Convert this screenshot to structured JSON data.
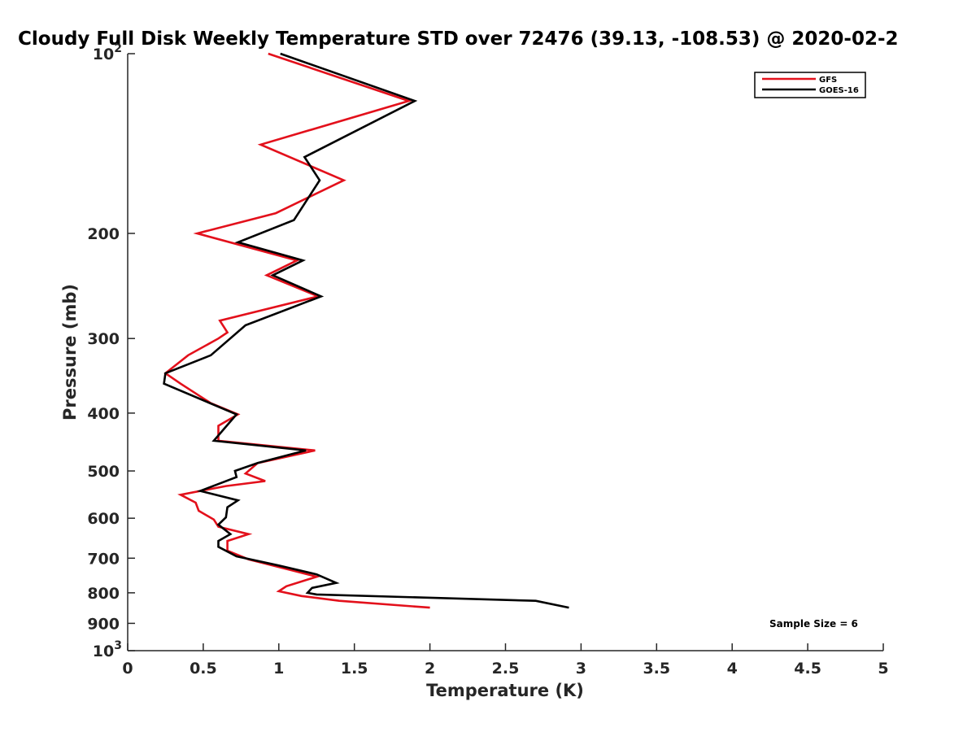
{
  "chart_data": {
    "type": "line",
    "title": "Cloudy Full Disk Weekly Temperature STD over 72476 (39.13, -108.53) @ 2020-02-2",
    "xlabel": "Temperature (K)",
    "ylabel": "Pressure (mb)",
    "xlim": [
      0,
      5
    ],
    "ylim": [
      100,
      1000
    ],
    "y_scale": "log",
    "y_reversed": true,
    "grid": false,
    "legend_position": "top-right",
    "x_ticks": [
      "0",
      "0.5",
      "1",
      "1.5",
      "2",
      "2.5",
      "3",
      "3.5",
      "4",
      "4.5",
      "5"
    ],
    "y_ticks": [
      {
        "value": 100,
        "label": "10",
        "sup": "2"
      },
      {
        "value": 200,
        "label": "200",
        "sup": ""
      },
      {
        "value": 300,
        "label": "300",
        "sup": ""
      },
      {
        "value": 400,
        "label": "400",
        "sup": ""
      },
      {
        "value": 500,
        "label": "500",
        "sup": ""
      },
      {
        "value": 600,
        "label": "600",
        "sup": ""
      },
      {
        "value": 700,
        "label": "700",
        "sup": ""
      },
      {
        "value": 800,
        "label": "800",
        "sup": ""
      },
      {
        "value": 900,
        "label": "900",
        "sup": ""
      },
      {
        "value": 1000,
        "label": "10",
        "sup": "3"
      }
    ],
    "annotation": "Sample Size = 6",
    "series": [
      {
        "name": "GFS",
        "color": "#e3101b",
        "points": [
          [
            0.93,
            100
          ],
          [
            1.86,
            120
          ],
          [
            0.88,
            142
          ],
          [
            1.43,
            163
          ],
          [
            0.98,
            185
          ],
          [
            0.46,
            200
          ],
          [
            1.12,
            222
          ],
          [
            0.92,
            235
          ],
          [
            1.26,
            255
          ],
          [
            0.61,
            280
          ],
          [
            0.66,
            293
          ],
          [
            0.6,
            300
          ],
          [
            0.4,
            320
          ],
          [
            0.25,
            343
          ],
          [
            0.35,
            357
          ],
          [
            0.55,
            385
          ],
          [
            0.73,
            402
          ],
          [
            0.6,
            420
          ],
          [
            0.6,
            445
          ],
          [
            1.24,
            462
          ],
          [
            0.86,
            485
          ],
          [
            0.78,
            505
          ],
          [
            0.91,
            520
          ],
          [
            0.65,
            530
          ],
          [
            0.35,
            548
          ],
          [
            0.45,
            565
          ],
          [
            0.47,
            583
          ],
          [
            0.57,
            603
          ],
          [
            0.6,
            620
          ],
          [
            0.8,
            638
          ],
          [
            0.66,
            655
          ],
          [
            0.66,
            680
          ],
          [
            0.8,
            703
          ],
          [
            1.1,
            735
          ],
          [
            1.25,
            752
          ],
          [
            1.05,
            780
          ],
          [
            1.0,
            795
          ],
          [
            1.15,
            810
          ],
          [
            1.4,
            825
          ],
          [
            2.0,
            847
          ]
        ]
      },
      {
        "name": "GOES-16",
        "color": "#000000",
        "points": [
          [
            1.01,
            100
          ],
          [
            1.9,
            120
          ],
          [
            1.17,
            149
          ],
          [
            1.27,
            163
          ],
          [
            1.1,
            190
          ],
          [
            0.73,
            207
          ],
          [
            1.16,
            222
          ],
          [
            0.96,
            235
          ],
          [
            1.28,
            255
          ],
          [
            0.78,
            285
          ],
          [
            0.55,
            320
          ],
          [
            0.25,
            343
          ],
          [
            0.24,
            357
          ],
          [
            0.72,
            402
          ],
          [
            0.57,
            445
          ],
          [
            1.18,
            462
          ],
          [
            0.86,
            485
          ],
          [
            0.71,
            500
          ],
          [
            0.72,
            512
          ],
          [
            0.48,
            540
          ],
          [
            0.73,
            560
          ],
          [
            0.66,
            575
          ],
          [
            0.65,
            598
          ],
          [
            0.6,
            615
          ],
          [
            0.68,
            638
          ],
          [
            0.6,
            655
          ],
          [
            0.6,
            670
          ],
          [
            0.72,
            695
          ],
          [
            1.0,
            720
          ],
          [
            1.25,
            745
          ],
          [
            1.38,
            770
          ],
          [
            1.22,
            785
          ],
          [
            1.19,
            800
          ],
          [
            1.25,
            805
          ],
          [
            2.7,
            825
          ],
          [
            2.92,
            847
          ]
        ]
      }
    ]
  }
}
